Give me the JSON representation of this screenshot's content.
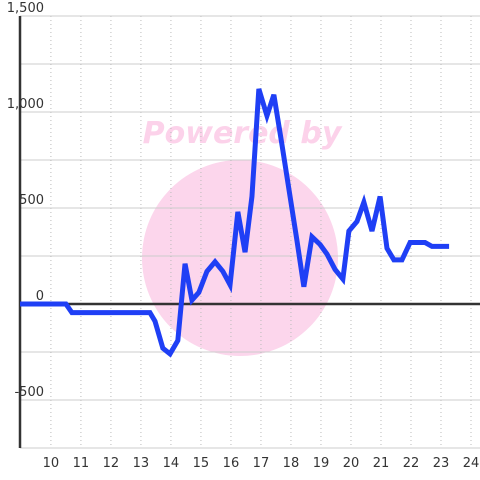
{
  "chart_data": {
    "type": "line",
    "watermark": "Powered by",
    "x": [
      8.97,
      10.5,
      10.7,
      13.3,
      13.47,
      13.73,
      13.97,
      14.23,
      14.47,
      14.7,
      14.93,
      15.2,
      15.47,
      15.73,
      15.97,
      16.23,
      16.47,
      16.7,
      16.93,
      17.2,
      17.43,
      17.7,
      17.97,
      18.2,
      18.43,
      18.7,
      18.97,
      19.2,
      19.47,
      19.73,
      19.93,
      20.2,
      20.43,
      20.7,
      20.97,
      21.2,
      21.43,
      21.7,
      21.97,
      22.47,
      22.7,
      23.27
    ],
    "series": [
      {
        "color": "#1f3ff5",
        "values": [
          0,
          0,
          -45,
          -45,
          -90,
          -230,
          -260,
          -190,
          210,
          20,
          60,
          170,
          220,
          170,
          100,
          480,
          270,
          560,
          1120,
          980,
          1090,
          830,
          560,
          330,
          90,
          350,
          310,
          260,
          180,
          130,
          380,
          430,
          530,
          380,
          560,
          290,
          230,
          230,
          320,
          320,
          300,
          300
        ]
      }
    ],
    "xlim": [
      8.97,
      24.3
    ],
    "xticks": [
      10,
      11,
      12,
      13,
      14,
      15,
      16,
      17,
      18,
      19,
      20,
      21,
      22,
      23,
      24
    ],
    "ylim": [
      -750,
      1500
    ],
    "yticks": [
      {
        "value": -500,
        "label": "-500"
      },
      0,
      500,
      {
        "value": 1000,
        "label": "1,000"
      },
      {
        "value": 1500,
        "label": "1,500"
      }
    ],
    "yminorticks": [
      -750,
      -250,
      250,
      750,
      1250
    ],
    "grid": true
  }
}
